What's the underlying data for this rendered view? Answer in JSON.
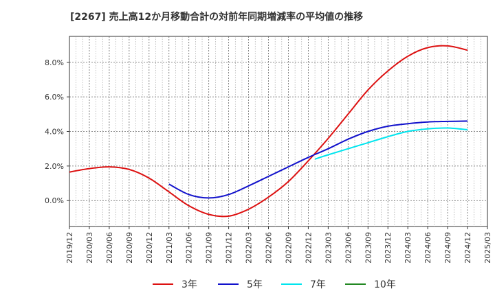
{
  "chart_data": {
    "type": "line",
    "title": "[2267]  売上高12か月移動合計の対前年同期増減率の平均値の推移",
    "xlabel": "",
    "ylabel": "",
    "x_ticks": [
      "2019/12",
      "2020/03",
      "2020/06",
      "2020/09",
      "2020/12",
      "2021/03",
      "2021/06",
      "2021/09",
      "2021/12",
      "2022/03",
      "2022/06",
      "2022/09",
      "2022/12",
      "2023/03",
      "2023/06",
      "2023/09",
      "2023/12",
      "2024/03",
      "2024/06",
      "2024/09",
      "2024/12",
      "2025/03"
    ],
    "y_ticks": [
      "0.0%",
      "2.0%",
      "4.0%",
      "6.0%",
      "8.0%"
    ],
    "y_tick_values": [
      0,
      2,
      4,
      6,
      8
    ],
    "ylim": [
      -1.5,
      9.5
    ],
    "grid": true,
    "legend_position": "bottom",
    "series": [
      {
        "name": "3年",
        "color": "#dd1111",
        "points": [
          [
            "2019/12",
            1.65
          ],
          [
            "2020/03",
            1.85
          ],
          [
            "2020/06",
            1.95
          ],
          [
            "2020/09",
            1.8
          ],
          [
            "2020/12",
            1.3
          ],
          [
            "2021/03",
            0.5
          ],
          [
            "2021/06",
            -0.3
          ],
          [
            "2021/09",
            -0.8
          ],
          [
            "2021/12",
            -0.9
          ],
          [
            "2022/03",
            -0.5
          ],
          [
            "2022/06",
            0.2
          ],
          [
            "2022/09",
            1.1
          ],
          [
            "2022/12",
            2.3
          ],
          [
            "2023/03",
            3.6
          ],
          [
            "2023/06",
            5.0
          ],
          [
            "2023/09",
            6.4
          ],
          [
            "2023/12",
            7.5
          ],
          [
            "2024/03",
            8.35
          ],
          [
            "2024/06",
            8.85
          ],
          [
            "2024/09",
            8.95
          ],
          [
            "2024/12",
            8.7
          ]
        ]
      },
      {
        "name": "5年",
        "color": "#1111cc",
        "points": [
          [
            "2021/03",
            0.95
          ],
          [
            "2021/06",
            0.35
          ],
          [
            "2021/09",
            0.15
          ],
          [
            "2021/12",
            0.35
          ],
          [
            "2022/03",
            0.85
          ],
          [
            "2022/06",
            1.4
          ],
          [
            "2022/09",
            1.95
          ],
          [
            "2022/12",
            2.5
          ],
          [
            "2023/03",
            3.0
          ],
          [
            "2023/06",
            3.55
          ],
          [
            "2023/09",
            4.0
          ],
          [
            "2023/12",
            4.3
          ],
          [
            "2024/03",
            4.45
          ],
          [
            "2024/06",
            4.55
          ],
          [
            "2024/09",
            4.58
          ],
          [
            "2024/12",
            4.6
          ]
        ]
      },
      {
        "name": "7年",
        "color": "#00e5ee",
        "points": [
          [
            "2023/01",
            2.4
          ],
          [
            "2023/03",
            2.65
          ],
          [
            "2023/06",
            3.0
          ],
          [
            "2023/09",
            3.35
          ],
          [
            "2023/12",
            3.7
          ],
          [
            "2024/03",
            4.0
          ],
          [
            "2024/06",
            4.15
          ],
          [
            "2024/09",
            4.2
          ],
          [
            "2024/12",
            4.1
          ]
        ]
      },
      {
        "name": "10年",
        "color": "#228822",
        "points": []
      }
    ]
  }
}
